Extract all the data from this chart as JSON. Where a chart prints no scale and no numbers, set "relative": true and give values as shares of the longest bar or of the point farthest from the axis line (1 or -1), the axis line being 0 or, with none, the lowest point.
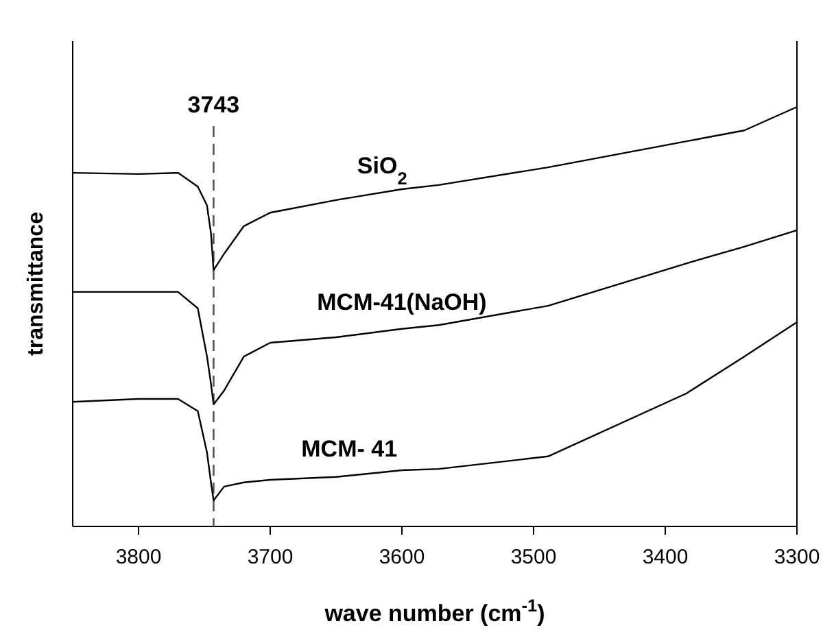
{
  "chart_data": {
    "type": "line",
    "relative": true,
    "xlabel": "wave number (cm$^{-1}$)",
    "ylabel": "transmittance",
    "xlim": [
      3850,
      3300
    ],
    "xticks": [
      3800,
      3700,
      3600,
      3500,
      3400,
      3300
    ],
    "tick_labels": "x",
    "line_style": "solid",
    "x": [
      3850,
      3800,
      3770,
      3755,
      3748,
      3745,
      3743,
      3735,
      3720,
      3700,
      3650,
      3600,
      3572,
      3489,
      3384,
      3340,
      3300
    ],
    "series": [
      {
        "name": "SiO$_{2}$",
        "color": "#000000",
        "values": [
          0.843,
          0.84,
          0.843,
          0.81,
          0.765,
          0.699,
          0.611,
          0.65,
          0.716,
          0.748,
          0.778,
          0.804,
          0.814,
          0.856,
          0.918,
          0.944,
          1.0
        ]
      },
      {
        "name": "MCM-41(NaOH)",
        "color": "#000000",
        "values": [
          0.559,
          0.559,
          0.559,
          0.52,
          0.405,
          0.34,
          0.291,
          0.324,
          0.405,
          0.438,
          0.451,
          0.471,
          0.48,
          0.526,
          0.627,
          0.667,
          0.706
        ]
      },
      {
        "name": "MCM- 41",
        "color": "#000000",
        "values": [
          0.297,
          0.304,
          0.304,
          0.275,
          0.176,
          0.105,
          0.062,
          0.095,
          0.105,
          0.111,
          0.118,
          0.134,
          0.137,
          0.167,
          0.317,
          0.405,
          0.487
        ]
      }
    ],
    "ref_lines": [
      {
        "axis": "x",
        "value": 3743,
        "label": "3743",
        "line_style": "dashed",
        "color": "#555555"
      }
    ]
  }
}
